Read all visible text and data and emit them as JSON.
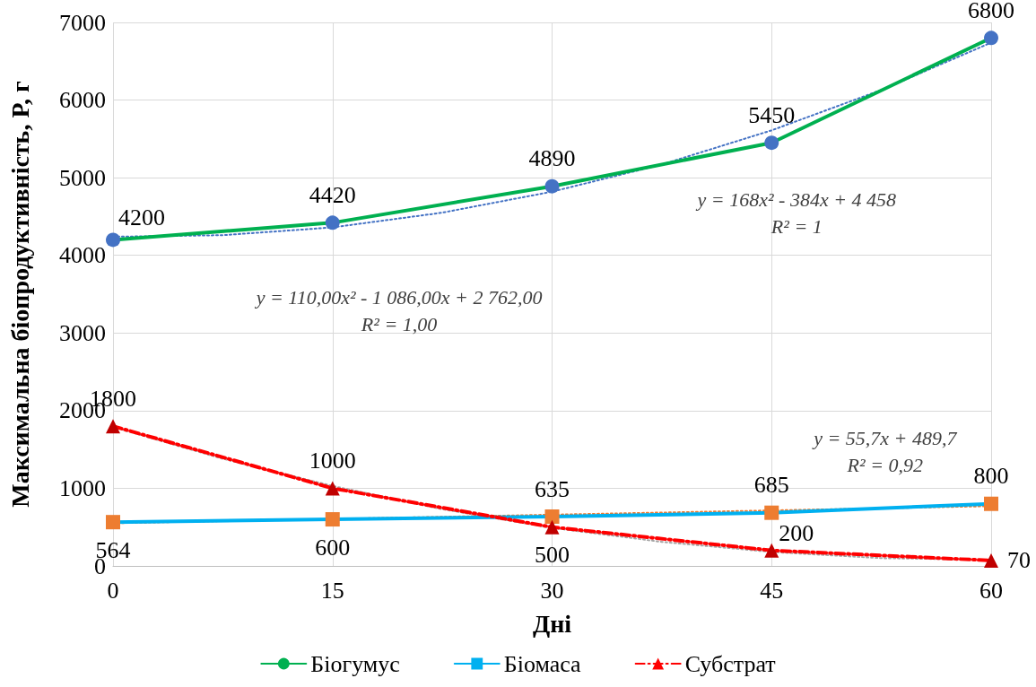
{
  "chart_data": {
    "type": "line",
    "xlabel": "Дні",
    "ylabel": "Максимальна біопродуктивність, P, г",
    "x": [
      0,
      15,
      30,
      45,
      60
    ],
    "xlim": [
      0,
      60
    ],
    "xticks": [
      0,
      15,
      30,
      45,
      60
    ],
    "ylim": [
      0,
      7000
    ],
    "yticks": [
      0,
      1000,
      2000,
      3000,
      4000,
      5000,
      6000,
      7000
    ],
    "grid": true,
    "legend": "bottom",
    "series": [
      {
        "name": "Біогумус",
        "color": "#00b050",
        "colors": [
          "#4472c4",
          "#4472c4",
          "#4472c4",
          "#4472c4",
          "#4472c4"
        ],
        "marker": "circle",
        "line_style": "solid",
        "values": [
          4200,
          4420,
          4890,
          5450,
          6800
        ],
        "value_labels": [
          "4200",
          "4420",
          "4890",
          "5450",
          "6800"
        ]
      },
      {
        "name": "Біомаса",
        "color": "#00b0f0",
        "colors": [
          "#ed7d31",
          "#ed7d31",
          "#ed7d31",
          "#ed7d31",
          "#ed7d31"
        ],
        "marker": "square",
        "line_style": "solid",
        "values": [
          564,
          600,
          635,
          685,
          800
        ],
        "value_labels": [
          "564",
          "600",
          "635",
          "685",
          "800"
        ]
      },
      {
        "name": "Субстрат",
        "color": "#ff0000",
        "colors": [
          "#c00000",
          "#c00000",
          "#c00000",
          "#c00000",
          "#c00000"
        ],
        "marker": "triangle",
        "line_style": "dashed",
        "values": [
          1800,
          1000,
          500,
          200,
          70
        ],
        "value_labels": [
          "1800",
          "1000",
          "500",
          "200",
          "70"
        ]
      },
      {
        "color": "#4472c4",
        "marker": "none",
        "line_style": "dotted",
        "x": [
          0,
          7.5,
          15,
          22.5,
          30,
          37.5,
          45,
          52.5,
          60
        ],
        "values": [
          4240,
          4260,
          4360,
          4550,
          4820,
          5170,
          5610,
          6130,
          6740
        ]
      },
      {
        "color": "#ed7d31",
        "marker": "none",
        "line_style": "dotted",
        "x": [
          0,
          60
        ],
        "values": [
          550,
          770
        ]
      },
      {
        "color": "#a5a5a5",
        "marker": "none",
        "line_style": "dotted",
        "x": [
          0,
          7.5,
          15,
          22.5,
          30,
          37.5,
          45,
          52.5,
          60
        ],
        "values": [
          1790,
          1380,
          1030,
          730,
          490,
          310,
          180,
          100,
          80
        ]
      }
    ],
    "annotations": [
      "y = 168x² - 384x + 4 458\nR² = 1",
      "y = 110,00x² - 1 086,00x + 2 762,00\nR² = 1,00",
      "y = 55,7x + 489,7\nR² = 0,92"
    ]
  }
}
